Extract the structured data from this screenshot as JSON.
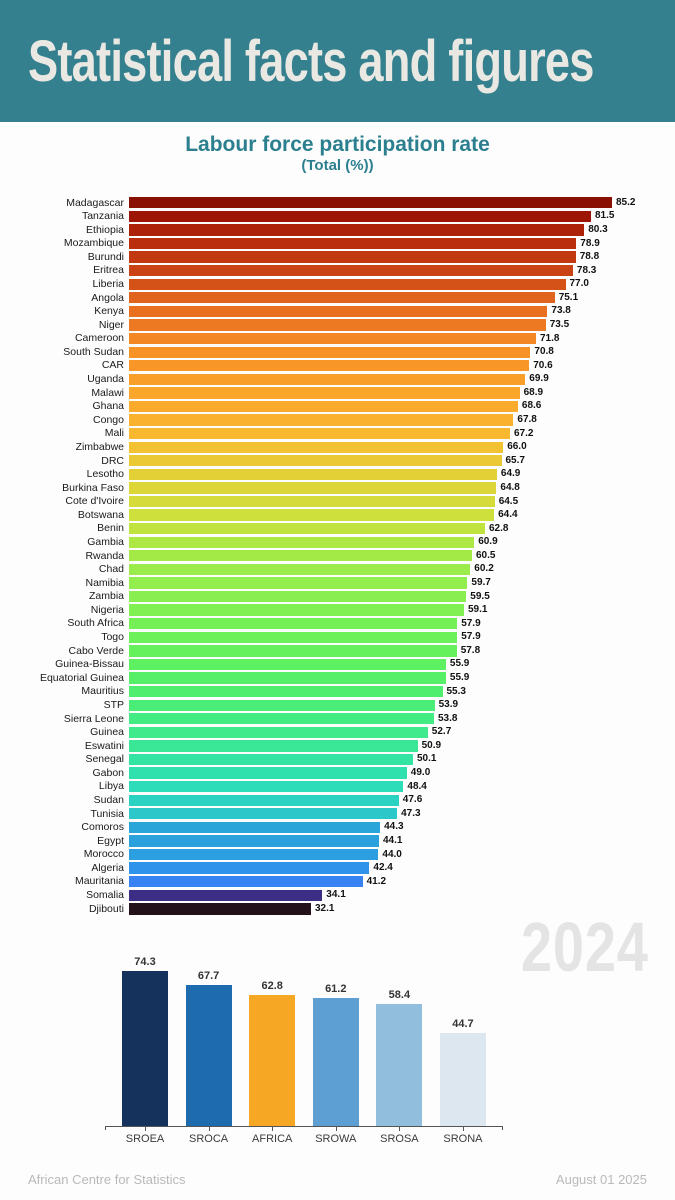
{
  "header": {
    "title": "Statistical facts and figures",
    "bg_color": "#35808e",
    "text_color": "#eae8e3"
  },
  "chart_title": {
    "title": "Labour force participation rate",
    "subtitle": "(Total (%))",
    "color": "#2b7f8e"
  },
  "watermark": "2024",
  "footer": {
    "left": "African Centre for Statistics",
    "right": "August 01 2025"
  },
  "chart_data": [
    {
      "type": "bar",
      "orientation": "horizontal",
      "title": "Labour force participation rate (Total (%))",
      "xlim": [
        0,
        85.2
      ],
      "grid": false,
      "value_labels": "end-of-bar",
      "categories": [
        "Madagascar",
        "Tanzania",
        "Ethiopia",
        "Mozambique",
        "Burundi",
        "Eritrea",
        "Liberia",
        "Angola",
        "Kenya",
        "Niger",
        "Cameroon",
        "South Sudan",
        "CAR",
        "Uganda",
        "Malawi",
        "Ghana",
        "Congo",
        "Mali",
        "Zimbabwe",
        "DRC",
        "Lesotho",
        "Burkina Faso",
        "Cote d'Ivoire",
        "Botswana",
        "Benin",
        "Gambia",
        "Rwanda",
        "Chad",
        "Namibia",
        "Zambia",
        "Nigeria",
        "South Africa",
        "Togo",
        "Cabo Verde",
        "Guinea-Bissau",
        "Equatorial Guinea",
        "Mauritius",
        "STP",
        "Sierra Leone",
        "Guinea",
        "Eswatini",
        "Senegal",
        "Gabon",
        "Libya",
        "Sudan",
        "Tunisia",
        "Comoros",
        "Egypt",
        "Morocco",
        "Algeria",
        "Mauritania",
        "Somalia",
        "Djibouti"
      ],
      "values": [
        85.2,
        81.5,
        80.3,
        78.9,
        78.8,
        78.3,
        77.0,
        75.1,
        73.8,
        73.5,
        71.8,
        70.8,
        70.6,
        69.9,
        68.9,
        68.6,
        67.8,
        67.2,
        66.0,
        65.7,
        64.9,
        64.8,
        64.5,
        64.4,
        62.8,
        60.9,
        60.5,
        60.2,
        59.7,
        59.5,
        59.1,
        57.9,
        57.9,
        57.8,
        55.9,
        55.9,
        55.3,
        53.9,
        53.8,
        52.7,
        50.9,
        50.1,
        49.0,
        48.4,
        47.6,
        47.3,
        44.3,
        44.1,
        44.0,
        42.4,
        41.2,
        34.1,
        32.1
      ],
      "colors": [
        "#8a1003",
        "#9c1505",
        "#ad2108",
        "#ba2d0d",
        "#c23810",
        "#ca4314",
        "#d45218",
        "#e0641d",
        "#e87020",
        "#ed7922",
        "#f38724",
        "#f79226",
        "#f89727",
        "#f89e29",
        "#f9a62b",
        "#faab2c",
        "#fab22e",
        "#f8b930",
        "#f2c232",
        "#ebc934",
        "#e3d036",
        "#dcd638",
        "#d5db3a",
        "#cee03c",
        "#c1e33f",
        "#aee844",
        "#a4ea47",
        "#9bec4a",
        "#92ee4d",
        "#89ef50",
        "#80f053",
        "#74f056",
        "#6df159",
        "#65f15c",
        "#5df061",
        "#56ef67",
        "#4fee6f",
        "#49ed78",
        "#43ec82",
        "#3eea8c",
        "#39e797",
        "#34e4a2",
        "#30e0ad",
        "#2ddcb8",
        "#2cd2c1",
        "#2cc7c8",
        "#2aa5d9",
        "#2aa1dc",
        "#2b9fdf",
        "#2f93eb",
        "#3783f3",
        "#3c2d85",
        "#231219"
      ]
    },
    {
      "type": "bar",
      "orientation": "vertical",
      "title": "",
      "ylim": [
        0,
        80
      ],
      "grid": false,
      "value_labels": "above-bar",
      "categories": [
        "SROEA",
        "SROCA",
        "AFRICA",
        "SROWA",
        "SROSA",
        "SRONA"
      ],
      "values": [
        74.3,
        67.7,
        62.8,
        61.2,
        58.4,
        44.7
      ],
      "colors": [
        "#14325c",
        "#1f6bb0",
        "#f6a723",
        "#5d9fd3",
        "#92bedd",
        "#dde7f0"
      ]
    }
  ]
}
